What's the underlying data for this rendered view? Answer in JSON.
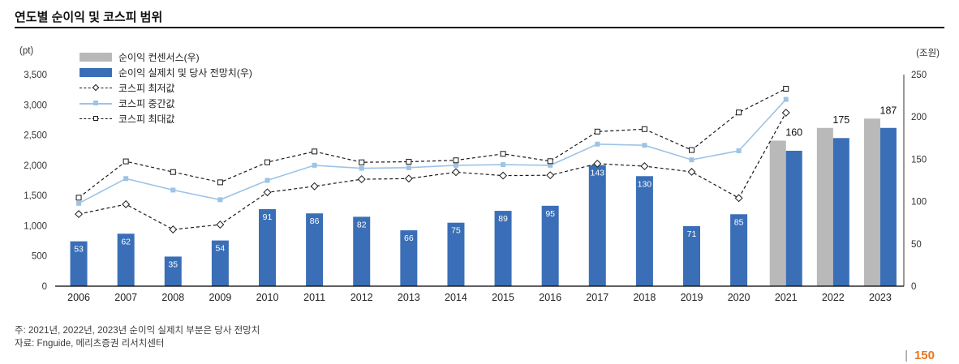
{
  "header": {
    "title": "연도별 순이익 및 코스피 범위"
  },
  "axis_units": {
    "left": "(pt)",
    "right": "(조원)"
  },
  "chart_data": {
    "type": "combo",
    "title": "연도별 순이익 및 코스피 범위",
    "grid": false,
    "legend_position": "top-left",
    "categories": [
      "2006",
      "2007",
      "2008",
      "2009",
      "2010",
      "2011",
      "2012",
      "2013",
      "2014",
      "2015",
      "2016",
      "2017",
      "2018",
      "2019",
      "2020",
      "2021",
      "2022",
      "2023"
    ],
    "left_axis": {
      "unit": "(pt)",
      "min": 0,
      "max": 3500,
      "ticks": [
        {
          "value": 0,
          "label": "0"
        },
        {
          "value": 500,
          "label": "500"
        },
        {
          "value": 1000,
          "label": "1,000"
        },
        {
          "value": 1500,
          "label": "1,500"
        },
        {
          "value": 2000,
          "label": "2,000"
        },
        {
          "value": 2500,
          "label": "2,500"
        },
        {
          "value": 3000,
          "label": "3,000"
        },
        {
          "value": 3500,
          "label": "3,500"
        }
      ]
    },
    "right_axis": {
      "unit": "(조원)",
      "min": 0,
      "max": 250,
      "ticks": [
        {
          "value": 0,
          "label": "0"
        },
        {
          "value": 50,
          "label": "50"
        },
        {
          "value": 100,
          "label": "100"
        },
        {
          "value": 150,
          "label": "150"
        },
        {
          "value": 200,
          "label": "200"
        },
        {
          "value": 250,
          "label": "250"
        }
      ]
    },
    "series": [
      {
        "id": "consensus",
        "name": "순이익 컨센서스(우)",
        "type": "bar",
        "axis": "right",
        "color": "#b9b9b9",
        "values": [
          null,
          null,
          null,
          null,
          null,
          null,
          null,
          null,
          null,
          null,
          null,
          null,
          null,
          null,
          null,
          172,
          187,
          198
        ]
      },
      {
        "id": "actual",
        "name": "순이익 실제치 및 당사 전망치(우)",
        "type": "bar",
        "axis": "right",
        "color": "#3a6fb7",
        "values": [
          53,
          62,
          35,
          54,
          91,
          86,
          82,
          66,
          75,
          89,
          95,
          143,
          130,
          71,
          85,
          160,
          175,
          187
        ]
      },
      {
        "id": "kospi-min",
        "name": "코스피 최저값",
        "type": "line",
        "axis": "left",
        "dash": true,
        "marker": "diamond",
        "color": "#1a1a1a",
        "width": 1.2,
        "values": [
          1192,
          1355,
          938,
          1018,
          1552,
          1652,
          1769,
          1780,
          1886,
          1829,
          1835,
          2026,
          1985,
          1891,
          1457,
          2869,
          null,
          null
        ]
      },
      {
        "id": "kospi-mid",
        "name": "코스피 중간값",
        "type": "line",
        "axis": "left",
        "dash": false,
        "marker": "square",
        "color": "#9dc3e6",
        "width": 1.6,
        "values": [
          1370,
          1780,
          1590,
          1430,
          1750,
          2000,
          1950,
          1960,
          2000,
          2010,
          2000,
          2350,
          2330,
          2090,
          2240,
          3090,
          null,
          null
        ]
      },
      {
        "id": "kospi-max",
        "name": "코스피 최대값",
        "type": "line",
        "axis": "left",
        "dash": true,
        "marker": "square-open",
        "color": "#1a1a1a",
        "width": 1.2,
        "values": [
          1464,
          2064,
          1888,
          1718,
          2050,
          2228,
          2049,
          2059,
          2082,
          2189,
          2068,
          2557,
          2598,
          2252,
          2873,
          3266,
          null,
          null
        ]
      }
    ]
  },
  "notes": {
    "line1": "주: 2021년, 2022년, 2023년 순이익 실제치 부분은 당사 전망치",
    "line2": "자료: Fnguide, 메리츠증권 리서치센터"
  },
  "footer": {
    "page_number": "150"
  }
}
